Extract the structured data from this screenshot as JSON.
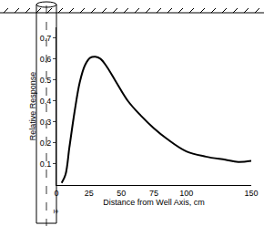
{
  "chart_data": {
    "type": "line",
    "x_label": "Distance from Well Axis, cm",
    "y_label": "Relative Response",
    "x": [
      4,
      7,
      10,
      14,
      18,
      22,
      26,
      30,
      34,
      38,
      45,
      55,
      65,
      75,
      85,
      100,
      115,
      130,
      140,
      150
    ],
    "values": [
      0.01,
      0.05,
      0.18,
      0.35,
      0.49,
      0.57,
      0.605,
      0.61,
      0.6,
      0.57,
      0.5,
      0.4,
      0.33,
      0.27,
      0.22,
      0.16,
      0.135,
      0.12,
      0.11,
      0.115
    ],
    "color": "#000000",
    "xlim": [
      0,
      150
    ],
    "xticks": [
      0,
      25,
      50,
      75,
      100,
      150
    ],
    "ylim": [
      0,
      0.75
    ],
    "yticks": [
      0.1,
      0.2,
      0.3,
      0.4,
      0.5,
      0.6,
      0.7
    ],
    "annotations": [
      {
        "text": "±"
      }
    ],
    "grid": false
  }
}
